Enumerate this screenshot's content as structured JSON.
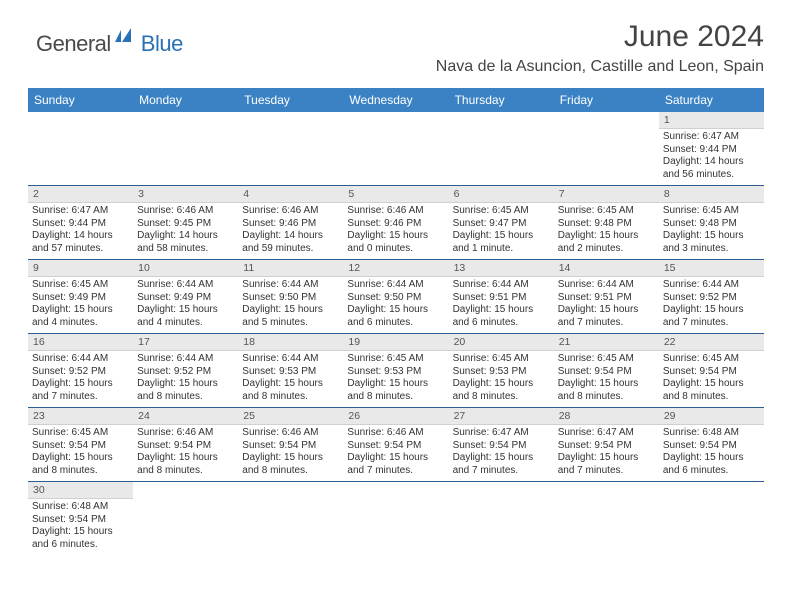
{
  "logo": {
    "general": "General",
    "blue": "Blue"
  },
  "title": "June 2024",
  "location": "Nava de la Asuncion, Castille and Leon, Spain",
  "dayHeaders": [
    "Sunday",
    "Monday",
    "Tuesday",
    "Wednesday",
    "Thursday",
    "Friday",
    "Saturday"
  ],
  "header_bg": "#3b82c4",
  "header_fg": "#ffffff",
  "daynum_bg": "#e9e9e9",
  "border_color": "#2a5f8f",
  "weeks": [
    [
      null,
      null,
      null,
      null,
      null,
      null,
      {
        "n": "1",
        "sr": "6:47 AM",
        "ss": "9:44 PM",
        "dl": "14 hours and 56 minutes."
      }
    ],
    [
      {
        "n": "2",
        "sr": "6:47 AM",
        "ss": "9:44 PM",
        "dl": "14 hours and 57 minutes."
      },
      {
        "n": "3",
        "sr": "6:46 AM",
        "ss": "9:45 PM",
        "dl": "14 hours and 58 minutes."
      },
      {
        "n": "4",
        "sr": "6:46 AM",
        "ss": "9:46 PM",
        "dl": "14 hours and 59 minutes."
      },
      {
        "n": "5",
        "sr": "6:46 AM",
        "ss": "9:46 PM",
        "dl": "15 hours and 0 minutes."
      },
      {
        "n": "6",
        "sr": "6:45 AM",
        "ss": "9:47 PM",
        "dl": "15 hours and 1 minute."
      },
      {
        "n": "7",
        "sr": "6:45 AM",
        "ss": "9:48 PM",
        "dl": "15 hours and 2 minutes."
      },
      {
        "n": "8",
        "sr": "6:45 AM",
        "ss": "9:48 PM",
        "dl": "15 hours and 3 minutes."
      }
    ],
    [
      {
        "n": "9",
        "sr": "6:45 AM",
        "ss": "9:49 PM",
        "dl": "15 hours and 4 minutes."
      },
      {
        "n": "10",
        "sr": "6:44 AM",
        "ss": "9:49 PM",
        "dl": "15 hours and 4 minutes."
      },
      {
        "n": "11",
        "sr": "6:44 AM",
        "ss": "9:50 PM",
        "dl": "15 hours and 5 minutes."
      },
      {
        "n": "12",
        "sr": "6:44 AM",
        "ss": "9:50 PM",
        "dl": "15 hours and 6 minutes."
      },
      {
        "n": "13",
        "sr": "6:44 AM",
        "ss": "9:51 PM",
        "dl": "15 hours and 6 minutes."
      },
      {
        "n": "14",
        "sr": "6:44 AM",
        "ss": "9:51 PM",
        "dl": "15 hours and 7 minutes."
      },
      {
        "n": "15",
        "sr": "6:44 AM",
        "ss": "9:52 PM",
        "dl": "15 hours and 7 minutes."
      }
    ],
    [
      {
        "n": "16",
        "sr": "6:44 AM",
        "ss": "9:52 PM",
        "dl": "15 hours and 7 minutes."
      },
      {
        "n": "17",
        "sr": "6:44 AM",
        "ss": "9:52 PM",
        "dl": "15 hours and 8 minutes."
      },
      {
        "n": "18",
        "sr": "6:44 AM",
        "ss": "9:53 PM",
        "dl": "15 hours and 8 minutes."
      },
      {
        "n": "19",
        "sr": "6:45 AM",
        "ss": "9:53 PM",
        "dl": "15 hours and 8 minutes."
      },
      {
        "n": "20",
        "sr": "6:45 AM",
        "ss": "9:53 PM",
        "dl": "15 hours and 8 minutes."
      },
      {
        "n": "21",
        "sr": "6:45 AM",
        "ss": "9:54 PM",
        "dl": "15 hours and 8 minutes."
      },
      {
        "n": "22",
        "sr": "6:45 AM",
        "ss": "9:54 PM",
        "dl": "15 hours and 8 minutes."
      }
    ],
    [
      {
        "n": "23",
        "sr": "6:45 AM",
        "ss": "9:54 PM",
        "dl": "15 hours and 8 minutes."
      },
      {
        "n": "24",
        "sr": "6:46 AM",
        "ss": "9:54 PM",
        "dl": "15 hours and 8 minutes."
      },
      {
        "n": "25",
        "sr": "6:46 AM",
        "ss": "9:54 PM",
        "dl": "15 hours and 8 minutes."
      },
      {
        "n": "26",
        "sr": "6:46 AM",
        "ss": "9:54 PM",
        "dl": "15 hours and 7 minutes."
      },
      {
        "n": "27",
        "sr": "6:47 AM",
        "ss": "9:54 PM",
        "dl": "15 hours and 7 minutes."
      },
      {
        "n": "28",
        "sr": "6:47 AM",
        "ss": "9:54 PM",
        "dl": "15 hours and 7 minutes."
      },
      {
        "n": "29",
        "sr": "6:48 AM",
        "ss": "9:54 PM",
        "dl": "15 hours and 6 minutes."
      }
    ],
    [
      {
        "n": "30",
        "sr": "6:48 AM",
        "ss": "9:54 PM",
        "dl": "15 hours and 6 minutes."
      },
      null,
      null,
      null,
      null,
      null,
      null
    ]
  ],
  "labels": {
    "sunrise": "Sunrise:",
    "sunset": "Sunset:",
    "daylight": "Daylight:"
  }
}
